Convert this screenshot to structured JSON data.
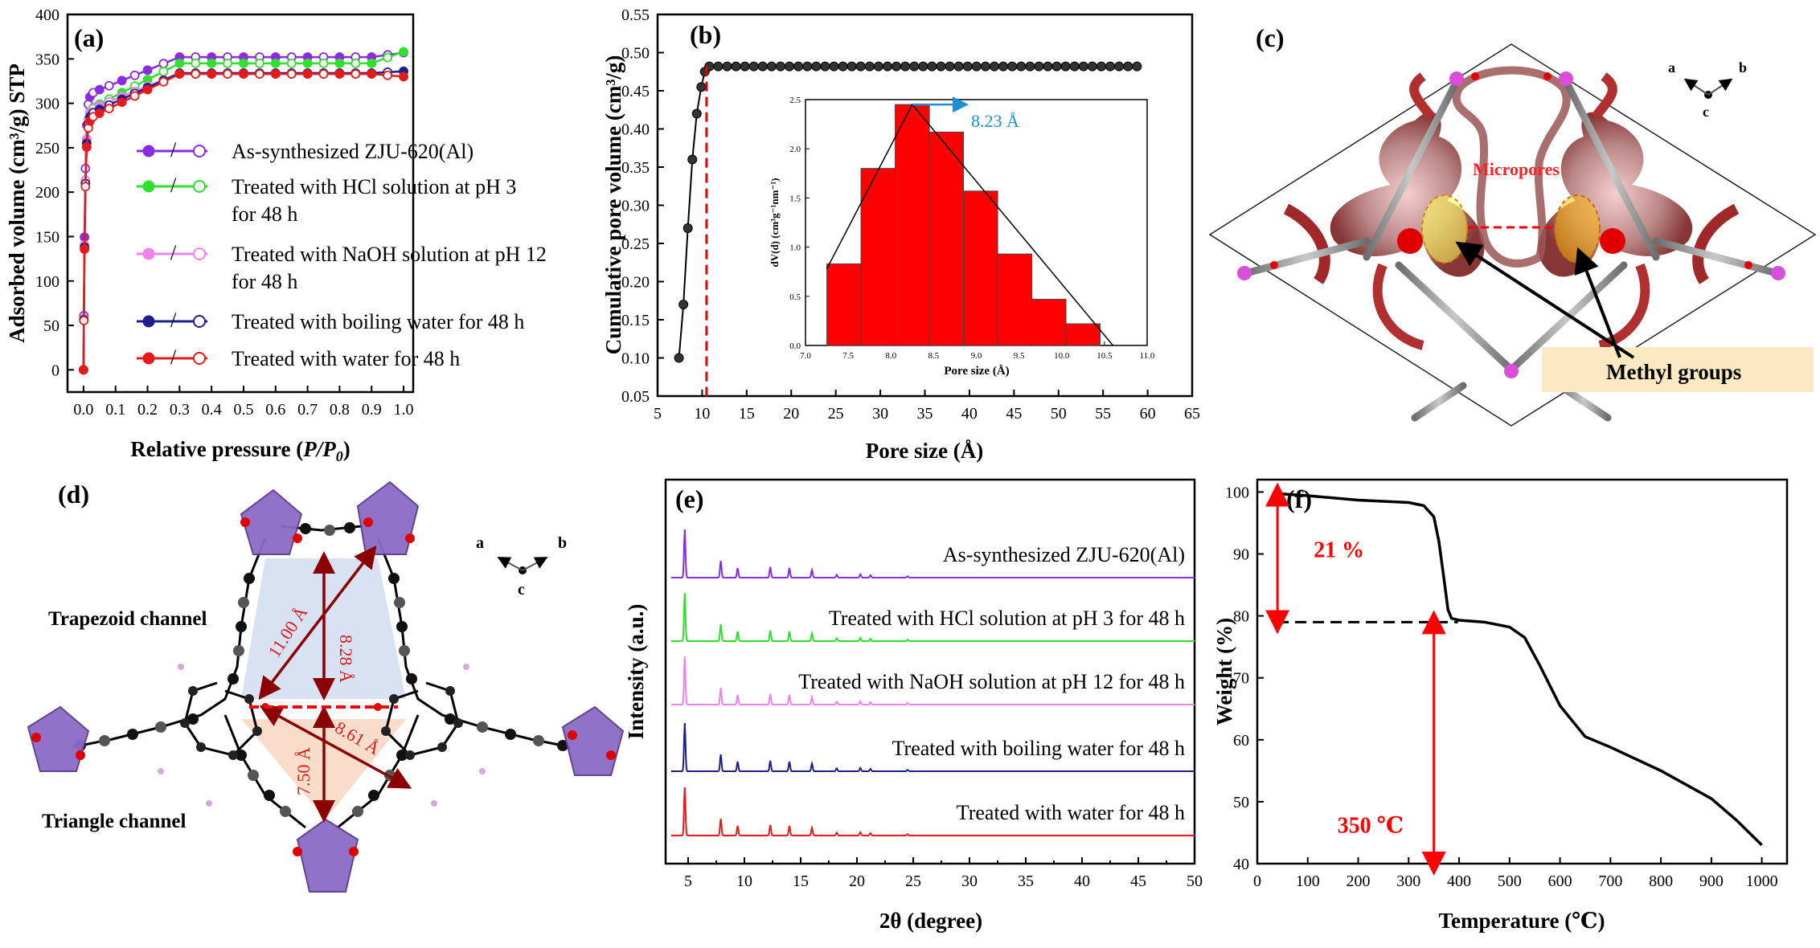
{
  "panels": {
    "a": "(a)",
    "b": "(b)",
    "c": "(c)",
    "d": "(d)",
    "e": "(e)",
    "f": "(f)"
  },
  "colors": {
    "as_synth": "#8a2be2",
    "hcl": "#2fe02f",
    "naoh": "#ee82ee",
    "boiling": "#1e1e8c",
    "water": "#e51b1b",
    "bar": "#ff0000",
    "highlight": "#1a8fd6"
  },
  "chart_data": [
    {
      "id": "a",
      "type": "line",
      "xlabel_main": "Relative pressure (",
      "xlabel_italic": "P/P",
      "xlabel_sub": "0",
      "xlabel_end": ")",
      "ylabel": "Adsorbed volume (cm³/g) STP",
      "xlim": [
        -0.05,
        1.03
      ],
      "ylim": [
        -25,
        400
      ],
      "xticks": [
        "0.0",
        "0.1",
        "0.2",
        "0.3",
        "0.4",
        "0.5",
        "0.6",
        "0.7",
        "0.8",
        "0.9",
        "1.0"
      ],
      "yticks": [
        "0",
        "50",
        "100",
        "150",
        "200",
        "250",
        "300",
        "350",
        "400"
      ],
      "legend_sep": "/",
      "series": [
        {
          "name": "As-synthesized ZJU-620(Al)",
          "color_key": "as_synth",
          "plateau": 352,
          "end": 357,
          "low": 308
        },
        {
          "name_lines": [
            "Treated with HCl solution at pH 3",
            "for 48 h"
          ],
          "color_key": "hcl",
          "plateau": 345,
          "end": 358,
          "low": 290
        },
        {
          "name_lines": [
            "Treated with NaOH solution at pH 12",
            "for 48 h"
          ],
          "color_key": "naoh",
          "plateau": 334,
          "end": 336,
          "low": 290
        },
        {
          "name": "Treated with boiling water for 48 h",
          "color_key": "boiling",
          "plateau": 334,
          "end": 336,
          "low": 285
        },
        {
          "name": "Treated with water for 48 h",
          "color_key": "water",
          "plateau": 333,
          "end": 330,
          "low": 280
        }
      ]
    },
    {
      "id": "b",
      "type": "line",
      "xlabel": "Pore size (Å)",
      "ylabel": "Cumulative pore volume (cm³/g)",
      "xlim": [
        5,
        65
      ],
      "ylim": [
        0.05,
        0.55
      ],
      "xticks": [
        "5",
        "10",
        "15",
        "20",
        "25",
        "30",
        "35",
        "40",
        "45",
        "50",
        "55",
        "60",
        "65"
      ],
      "yticks": [
        "0.05",
        "0.10",
        "0.15",
        "0.20",
        "0.25",
        "0.30",
        "0.35",
        "0.40",
        "0.45",
        "0.50",
        "0.55"
      ],
      "x": [
        7.4,
        7.9,
        8.4,
        8.9,
        9.4,
        9.9,
        10.3
      ],
      "y": [
        0.1,
        0.17,
        0.27,
        0.36,
        0.42,
        0.455,
        0.475
      ],
      "plateau_y": 0.482,
      "dashed_x": 10.5,
      "inset": {
        "type": "bar",
        "xlabel": "Pore size (Å)",
        "ylabel": "dV(d) (cm³g⁻¹nm⁻¹)",
        "xlim": [
          7.0,
          11.0
        ],
        "ylim": [
          0.0,
          2.5
        ],
        "xticks": [
          "7.0",
          "7.5",
          "8.0",
          "8.5",
          "9.0",
          "9.5",
          "10.0",
          "10.5",
          "11.0"
        ],
        "yticks": [
          "0.0",
          "0.5",
          "1.0",
          "1.5",
          "2.0",
          "2.5"
        ],
        "bin_width": 0.4,
        "bin_starts": [
          7.25,
          7.65,
          8.05,
          8.45,
          8.85,
          9.25,
          9.65,
          10.05
        ],
        "values": [
          0.83,
          1.8,
          2.45,
          2.17,
          1.57,
          0.93,
          0.47,
          0.22
        ],
        "fit_x": [
          7.25,
          8.25,
          10.6
        ],
        "fit_y": [
          0.78,
          2.45,
          0.0
        ],
        "annotation": "8.23 Å"
      }
    },
    {
      "id": "e",
      "type": "line",
      "xlabel": "2θ (degree)",
      "ylabel": "Intensity (a.u.)",
      "xlim": [
        3,
        50
      ],
      "xticks": [
        "5",
        "10",
        "15",
        "20",
        "25",
        "30",
        "35",
        "40",
        "45",
        "50"
      ],
      "peaks": [
        4.7,
        7.9,
        9.4,
        12.3,
        14.0,
        16.0,
        18.2,
        20.3,
        21.2,
        24.5
      ],
      "peak_heights": [
        1.0,
        0.35,
        0.2,
        0.22,
        0.2,
        0.16,
        0.06,
        0.07,
        0.05,
        0.03
      ],
      "series": [
        {
          "name": "As-synthesized ZJU-620(Al)",
          "color_key": "as_synth"
        },
        {
          "name": "Treated with HCl solution at pH 3 for 48 h",
          "color_key": "hcl"
        },
        {
          "name": "Treated with NaOH solution at pH 12 for 48 h",
          "color_key": "naoh"
        },
        {
          "name": "Treated with boiling water for 48 h",
          "color_key": "boiling"
        },
        {
          "name": "Treated with water for 48 h",
          "color_key": "water"
        }
      ]
    },
    {
      "id": "f",
      "type": "line",
      "xlabel": "Temperature (℃)",
      "ylabel": "Weight (%)",
      "xlim": [
        0,
        1050
      ],
      "ylim": [
        40,
        102
      ],
      "xticks": [
        "0",
        "100",
        "200",
        "300",
        "400",
        "500",
        "600",
        "700",
        "800",
        "900",
        "1000"
      ],
      "yticks": [
        "40",
        "50",
        "60",
        "70",
        "80",
        "90",
        "100"
      ],
      "x": [
        30,
        100,
        200,
        250,
        300,
        330,
        350,
        360,
        370,
        378,
        385,
        400,
        450,
        500,
        530,
        560,
        600,
        650,
        700,
        800,
        900,
        950,
        1000
      ],
      "y": [
        99.8,
        99.4,
        98.7,
        98.5,
        98.3,
        97.8,
        96,
        92,
        86,
        81,
        79.6,
        79.3,
        79,
        78.2,
        76.5,
        72,
        65.5,
        60.5,
        58.8,
        55,
        50.5,
        47,
        43
      ],
      "annotation_loss": "21 %",
      "annotation_temp": "350 ℃",
      "arrow_loss_x": 40,
      "arrow_temp_x": 350,
      "dashed_y": 79
    }
  ],
  "structure_c": {
    "label_micropores": "Micropores",
    "label_methyl": "Methyl groups",
    "axis_a": "a",
    "axis_b": "b",
    "axis_c": "c"
  },
  "structure_d": {
    "label_trapezoid": "Trapezoid channel",
    "label_triangle": "Triangle channel",
    "dim_1": "11.00 Å",
    "dim_2": "8.28 Å",
    "dim_3": "8.61 Å",
    "dim_4": "7.50 Å",
    "axis_a": "a",
    "axis_b": "b",
    "axis_c": "c"
  }
}
